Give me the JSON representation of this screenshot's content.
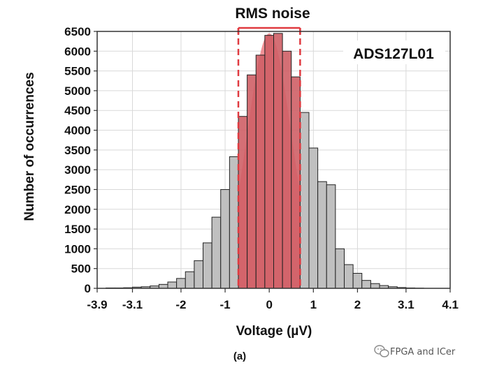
{
  "chart_data": {
    "type": "bar",
    "title": "RMS noise",
    "xlabel": "Voltage (µV)",
    "ylabel": "Number of occurrences",
    "annotation": "ADS127L01",
    "caption": "(a)",
    "xlim": [
      -3.9,
      4.1
    ],
    "ylim": [
      0,
      6500
    ],
    "xticks": [
      -3.9,
      -3.1,
      -2,
      -1,
      0,
      1,
      2,
      3.1,
      4.1
    ],
    "xtick_labels": [
      "-3.9",
      "-3.1",
      "-2",
      "-1",
      "0",
      "1",
      "2",
      "3.1",
      "4.1"
    ],
    "yticks": [
      0,
      500,
      1000,
      1500,
      2000,
      2500,
      3000,
      3500,
      4000,
      4500,
      5000,
      5500,
      6000,
      6500
    ],
    "ytick_labels": [
      "0",
      "500",
      "1000",
      "1500",
      "2000",
      "2500",
      "3000",
      "3500",
      "4000",
      "4500",
      "5000",
      "5500",
      "6000",
      "6500"
    ],
    "grid": true,
    "bin_width": 0.2,
    "bins": [
      {
        "x0": -3.7,
        "value": 10
      },
      {
        "x0": -3.5,
        "value": 10
      },
      {
        "x0": -3.3,
        "value": 15
      },
      {
        "x0": -3.1,
        "value": 30
      },
      {
        "x0": -2.9,
        "value": 40
      },
      {
        "x0": -2.7,
        "value": 60
      },
      {
        "x0": -2.5,
        "value": 100
      },
      {
        "x0": -2.3,
        "value": 160
      },
      {
        "x0": -2.1,
        "value": 250
      },
      {
        "x0": -1.9,
        "value": 420
      },
      {
        "x0": -1.7,
        "value": 700
      },
      {
        "x0": -1.5,
        "value": 1150
      },
      {
        "x0": -1.3,
        "value": 1800
      },
      {
        "x0": -1.1,
        "value": 2500
      },
      {
        "x0": -0.9,
        "value": 3330
      },
      {
        "x0": -0.7,
        "value": 4350
      },
      {
        "x0": -0.5,
        "value": 5400
      },
      {
        "x0": -0.3,
        "value": 5900
      },
      {
        "x0": -0.1,
        "value": 6400
      },
      {
        "x0": 0.1,
        "value": 6450
      },
      {
        "x0": 0.3,
        "value": 6000
      },
      {
        "x0": 0.5,
        "value": 5350
      },
      {
        "x0": 0.7,
        "value": 4450
      },
      {
        "x0": 0.9,
        "value": 3550
      },
      {
        "x0": 1.1,
        "value": 2700
      },
      {
        "x0": 1.3,
        "value": 2620
      },
      {
        "x0": 1.5,
        "value": 1000
      },
      {
        "x0": 1.7,
        "value": 600
      },
      {
        "x0": 1.9,
        "value": 380
      },
      {
        "x0": 2.1,
        "value": 200
      },
      {
        "x0": 2.3,
        "value": 120
      },
      {
        "x0": 2.5,
        "value": 70
      },
      {
        "x0": 2.7,
        "value": 40
      },
      {
        "x0": 2.9,
        "value": 20
      },
      {
        "x0": 3.1,
        "value": 10
      },
      {
        "x0": 3.3,
        "value": 5
      }
    ],
    "rms_range": [
      -0.7,
      0.7
    ],
    "bar_color": "#c0c0c0",
    "highlight_color": "#c8555c",
    "highlight_bar_color": "#cf5f66",
    "rms_curve_color": "#f07f85",
    "rms_line_color": "#e03a40"
  },
  "watermark": {
    "text": "FPGA and ICer",
    "icon": "wechat-icon"
  }
}
